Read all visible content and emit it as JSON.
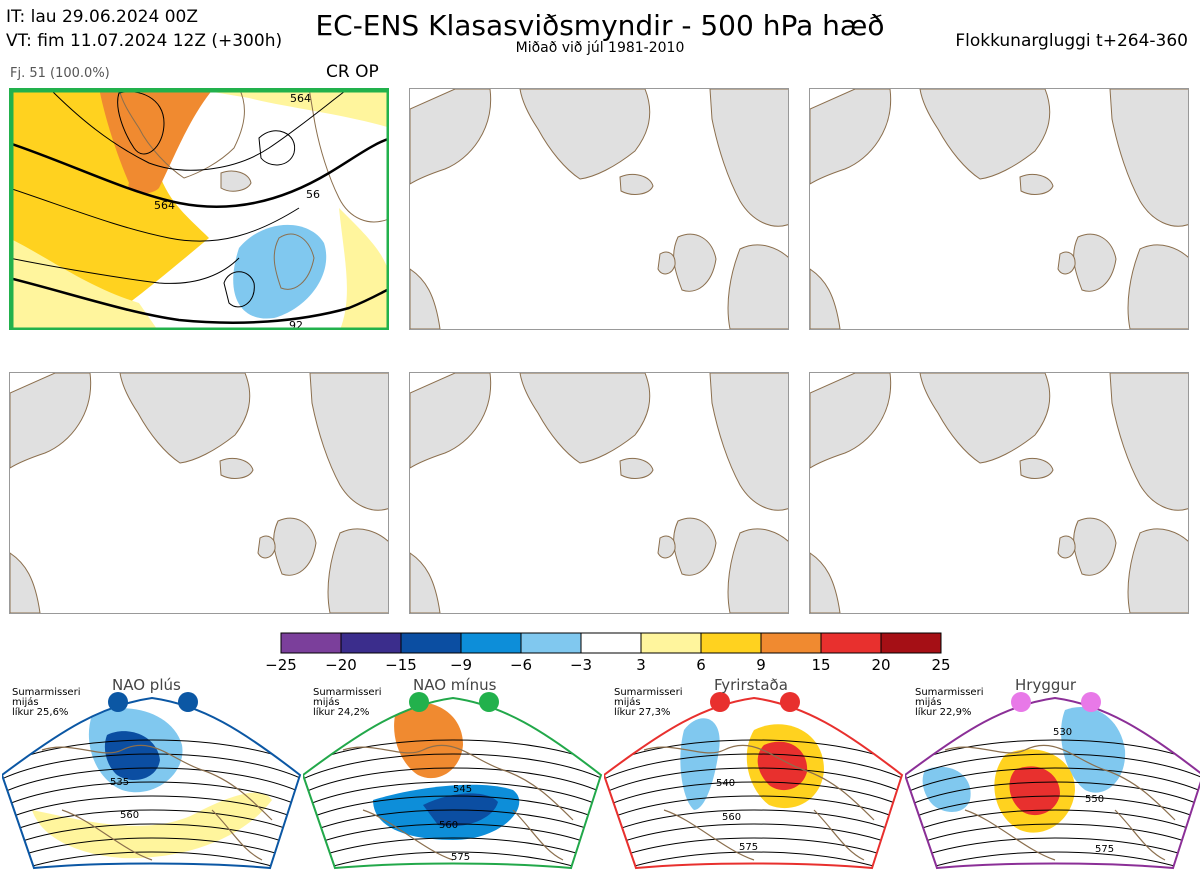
{
  "header": {
    "it_line": "IT: lau 29.06.2024 00Z",
    "vt_line": "VT: fim 11.07.2024 12Z  (+300h)",
    "title": "EC-ENS Klasasviðsmyndir - 500 hPa hæð",
    "subtitle": "Miðað við júl 1981-2010",
    "window": "Flokkunargluggi t+264-360"
  },
  "main_panel": {
    "member_label": "Fj. 51 (100.0%)",
    "regime_label": "CR OP",
    "border_color": "#22b14c",
    "contour_labels": [
      "564",
      "564",
      "564",
      "56",
      "92"
    ]
  },
  "colors": {
    "land": "#e0e0e0",
    "coast": "#8b6f4e"
  },
  "chart_data": [
    {
      "type": "heatmap",
      "title": "",
      "colorbar": {
        "ticks": [
          "−25",
          "−20",
          "−15",
          "−9",
          "−6",
          "−3",
          "3",
          "6",
          "9",
          "15",
          "20",
          "25"
        ],
        "colors": [
          "#7b3f9b",
          "#3b2d8c",
          "#0b4ea2",
          "#0d8ed9",
          "#80c8ef",
          "#ffffff",
          "#fff59d",
          "#ffd21f",
          "#f08a30",
          "#e8302e",
          "#a50f15"
        ]
      }
    }
  ],
  "regimes": [
    {
      "name": "NAO plús",
      "note_line1": "Sumarmisseri",
      "note_line2": "mijás",
      "note_line3": "líkur 25,6%",
      "border": "#0b57a4",
      "dot": "#0b57a4",
      "labels": [
        "535",
        "560"
      ]
    },
    {
      "name": "NAO mínus",
      "note_line1": "Sumarmisseri",
      "note_line2": "mijás",
      "note_line3": "líkur 24,2%",
      "border": "#22a84a",
      "dot": "#22b14c",
      "labels": [
        "545",
        "560",
        "575"
      ]
    },
    {
      "name": "Fyrirstaða",
      "note_line1": "Sumarmisseri",
      "note_line2": "mijás",
      "note_line3": "líkur 27,3%",
      "border": "#e8302e",
      "dot": "#e8302e",
      "labels": [
        "540",
        "560",
        "575"
      ]
    },
    {
      "name": "Hryggur",
      "note_line1": "Sumarmisseri",
      "note_line2": "mijás",
      "note_line3": "líkur 22,9%",
      "border": "#8b2f97",
      "dot": "#e879e8",
      "labels": [
        "530",
        "550",
        "575"
      ]
    }
  ]
}
